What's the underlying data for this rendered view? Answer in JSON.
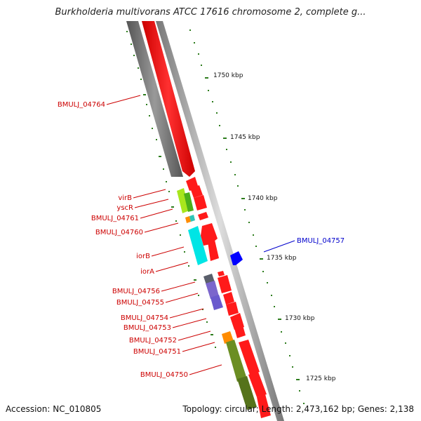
{
  "header": {
    "title": "Burkholderia multivorans ATCC 17616 chromosome 2, complete g..."
  },
  "footer": {
    "accession": "Accession: NC_010805",
    "summary": "Topology: circular; Length: 2,473,162 bp; Genes: 2,138"
  },
  "colors": {
    "forward_gene": "#ff0000",
    "reverse_gene": "#666666",
    "highlight_gene": "#0000ff",
    "gene_label": "#cc0000",
    "tick": "#2e7d1e",
    "backbone": "#999999",
    "cyan_gene": "#00e5e5",
    "lime_gene": "#a8e61d",
    "purple_gene": "#7b66cc",
    "orange_gene": "#ff8c00",
    "olive_gene": "#6b8e23"
  },
  "scale_labels": [
    "1750 kbp",
    "1745 kbp",
    "1740 kbp",
    "1735 kbp",
    "1730 kbp",
    "1725 kbp"
  ],
  "gene_labels": [
    "BMULJ_04764",
    "virB",
    "yscR",
    "BMULJ_04761",
    "BMULJ_04760",
    "iorB",
    "iorA",
    "BMULJ_04756",
    "BMULJ_04755",
    "BMULJ_04754",
    "BMULJ_04753",
    "BMULJ_04752",
    "BMULJ_04751",
    "BMULJ_04750"
  ],
  "highlighted_label": "BMULJ_04757"
}
